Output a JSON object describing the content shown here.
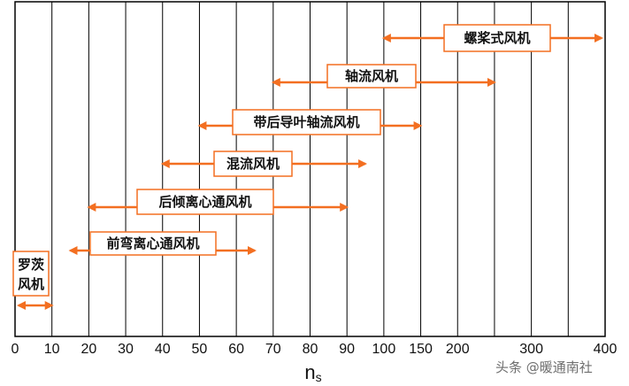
{
  "x_axis": {
    "title_main": "n",
    "title_sub": "s",
    "ticks": [
      "0",
      "10",
      "20",
      "30",
      "40",
      "50",
      "60",
      "70",
      "80",
      "90",
      "100",
      "150",
      "200",
      "300",
      "400"
    ]
  },
  "fan_types": [
    {
      "label": "螺桨式风机",
      "range": [
        "100",
        "400"
      ]
    },
    {
      "label": "轴流风机",
      "range": [
        "70",
        "250"
      ]
    },
    {
      "label": "带后导叶轴流风机",
      "range": [
        "50",
        "150"
      ]
    },
    {
      "label": "混流风机",
      "range": [
        "40",
        "95"
      ]
    },
    {
      "label": "后倾离心通风机",
      "range": [
        "20",
        "90"
      ]
    },
    {
      "label": "前弯离心通风机",
      "range": [
        "15",
        "65"
      ]
    },
    {
      "label_lines": [
        "罗茨",
        "风机"
      ],
      "range": [
        "0",
        "10"
      ]
    }
  ],
  "colors": {
    "accent": "#f36f21",
    "grid": "#000000"
  },
  "watermark": "头条 @暖通南社"
}
